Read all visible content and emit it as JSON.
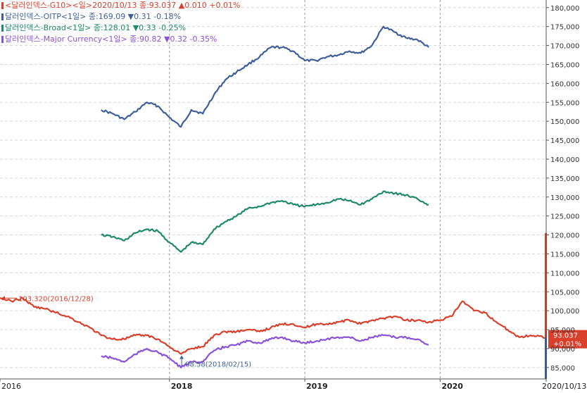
{
  "legend": [
    {
      "text": "<달러인덱스-G10><일>2020/10/13 종:93.037  ▲0.010 +0.01%",
      "color": "#d9402c"
    },
    {
      "text": "달러인덱스-OITP<1일> 종:169.09 ▼0.31 -0.18%",
      "color": "#3f5f9a"
    },
    {
      "text": "달러인덱스-Broad<1일> 종:128.01 ▼0.33 -0.25%",
      "color": "#1f8a6a"
    },
    {
      "text": "달러인덱스-Major Currency<1일> 종:90.82 ▼0.32 -0.35%",
      "color": "#8a52d6"
    }
  ],
  "annotations": {
    "high": "103.320(2016/12/28)",
    "low": "88.58(2018/02/15)",
    "last_value": "93.037",
    "last_change": "+0.01%"
  },
  "colors": {
    "grid": "#d8d8d8",
    "year_divider": "#9a9a9a",
    "axis": "#555555",
    "current_bar": "#2f5f9a",
    "range_bar": "#d9402c"
  },
  "chart_data": {
    "type": "line",
    "x_axis": {
      "tick_labels": [
        "2016",
        "2018",
        "2019",
        "2020",
        "2020/10/13"
      ],
      "range": [
        "2016-10",
        "2020-10-13"
      ]
    },
    "y_axis": {
      "ylim": [
        82000,
        182000
      ],
      "tick_labels": [
        "180,000",
        "175,000",
        "170,000",
        "165,000",
        "160,000",
        "155,000",
        "150,000",
        "145,000",
        "140,000",
        "135,000",
        "130,000",
        "125,000",
        "120,000",
        "115,000",
        "110,000",
        "105,000",
        "100,000",
        "95,000",
        "90,000",
        "85,000"
      ],
      "tick_values": [
        180000,
        175000,
        170000,
        165000,
        160000,
        155000,
        150000,
        145000,
        140000,
        135000,
        130000,
        125000,
        120000,
        115000,
        110000,
        105000,
        100000,
        95000,
        90000,
        85000
      ]
    },
    "grid": true,
    "series": [
      {
        "name": "달러인덱스-OITP",
        "color": "#3f5f9a",
        "x": [
          "2017-07",
          "2017-08",
          "2017-09",
          "2017-10",
          "2017-11",
          "2017-12",
          "2018-01",
          "2018-02",
          "2018-03",
          "2018-04",
          "2018-05",
          "2018-06",
          "2018-07",
          "2018-08",
          "2018-09",
          "2018-10",
          "2018-11",
          "2018-12",
          "2019-01",
          "2019-02",
          "2019-03",
          "2019-04",
          "2019-05",
          "2019-06",
          "2019-07",
          "2019-08",
          "2019-09",
          "2019-10",
          "2019-11",
          "2019-12"
        ],
        "values": [
          153000,
          152000,
          150500,
          152500,
          155000,
          154000,
          151000,
          148500,
          153000,
          152000,
          157000,
          161000,
          163000,
          165000,
          167000,
          169500,
          169500,
          168500,
          166000,
          166000,
          167000,
          167500,
          168500,
          168000,
          170000,
          175000,
          173500,
          172000,
          171500,
          169500
        ]
      },
      {
        "name": "달러인덱스-Broad",
        "color": "#1f8a6a",
        "x": [
          "2017-07",
          "2017-08",
          "2017-09",
          "2017-10",
          "2017-11",
          "2017-12",
          "2018-01",
          "2018-02",
          "2018-03",
          "2018-04",
          "2018-05",
          "2018-06",
          "2018-07",
          "2018-08",
          "2018-09",
          "2018-10",
          "2018-11",
          "2018-12",
          "2019-01",
          "2019-02",
          "2019-03",
          "2019-04",
          "2019-05",
          "2019-06",
          "2019-07",
          "2019-08",
          "2019-09",
          "2019-10",
          "2019-11",
          "2019-12"
        ],
        "values": [
          120000,
          119500,
          118500,
          120500,
          121500,
          121000,
          118000,
          115500,
          118000,
          117500,
          121500,
          123500,
          125000,
          127000,
          127500,
          128500,
          129000,
          128000,
          127500,
          128000,
          128500,
          129500,
          129000,
          128000,
          129500,
          131500,
          131000,
          130500,
          129500,
          128000
        ]
      },
      {
        "name": "달러인덱스-G10",
        "color": "#d9402c",
        "x": [
          "2016-10",
          "2016-11",
          "2016-12",
          "2017-01",
          "2017-02",
          "2017-03",
          "2017-04",
          "2017-05",
          "2017-06",
          "2017-07",
          "2017-08",
          "2017-09",
          "2017-10",
          "2017-11",
          "2017-12",
          "2018-01",
          "2018-02",
          "2018-03",
          "2018-04",
          "2018-05",
          "2018-06",
          "2018-07",
          "2018-08",
          "2018-09",
          "2018-10",
          "2018-11",
          "2018-12",
          "2019-01",
          "2019-02",
          "2019-03",
          "2019-04",
          "2019-05",
          "2019-06",
          "2019-07",
          "2019-08",
          "2019-09",
          "2019-10",
          "2019-11",
          "2019-12",
          "2020-01",
          "2020-02",
          "2020-03",
          "2020-04",
          "2020-05",
          "2020-06",
          "2020-07",
          "2020-08",
          "2020-09",
          "2020-10-13"
        ],
        "values": [
          103300,
          102500,
          103320,
          101000,
          100500,
          99500,
          98500,
          97000,
          95500,
          93500,
          92500,
          92500,
          93500,
          93500,
          92500,
          90500,
          88580,
          90000,
          90500,
          93500,
          94500,
          94500,
          95000,
          94500,
          95500,
          96500,
          96500,
          95500,
          96500,
          96500,
          97000,
          97500,
          96500,
          97500,
          98000,
          98500,
          97500,
          97500,
          97000,
          97500,
          98500,
          102500,
          100000,
          99500,
          97000,
          95000,
          93000,
          93500,
          93037
        ]
      },
      {
        "name": "달러인덱스-Major Currency",
        "color": "#8a52d6",
        "x": [
          "2017-07",
          "2017-08",
          "2017-09",
          "2017-10",
          "2017-11",
          "2017-12",
          "2018-01",
          "2018-02",
          "2018-03",
          "2018-04",
          "2018-05",
          "2018-06",
          "2018-07",
          "2018-08",
          "2018-09",
          "2018-10",
          "2018-11",
          "2018-12",
          "2019-01",
          "2019-02",
          "2019-03",
          "2019-04",
          "2019-05",
          "2019-06",
          "2019-07",
          "2019-08",
          "2019-09",
          "2019-10",
          "2019-11",
          "2019-12"
        ],
        "values": [
          88000,
          87500,
          86500,
          88500,
          90000,
          89000,
          87500,
          85000,
          86500,
          86500,
          89500,
          90500,
          91000,
          92000,
          91500,
          92500,
          93000,
          92000,
          91500,
          92000,
          92500,
          93000,
          93000,
          92000,
          93000,
          93500,
          93000,
          93000,
          92500,
          91000
        ]
      }
    ]
  }
}
